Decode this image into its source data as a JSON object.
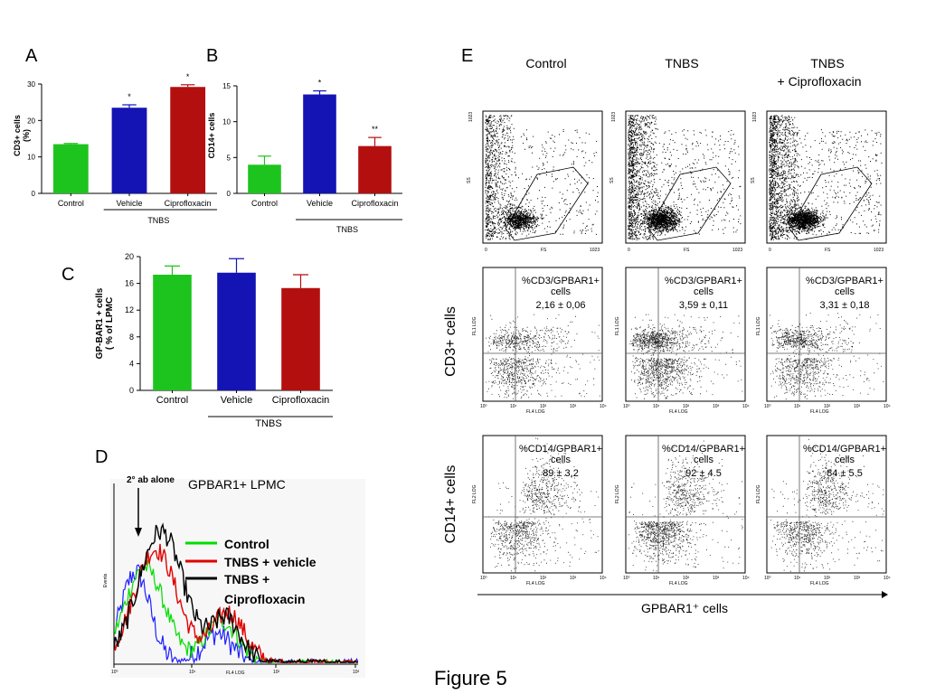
{
  "figure_title": "Figure 5",
  "panels": {
    "A": {
      "letter": "A",
      "group_label": "TNBS"
    },
    "B": {
      "letter": "B",
      "group_label": "TNBS"
    },
    "C": {
      "letter": "C",
      "group_label": "TNBS"
    },
    "D": {
      "letter": "D",
      "subtitle": "GPBAR1+ LPMC",
      "marker_label": "2° ab alone",
      "ylabel": "Events",
      "xlabel": "FL4 LOG",
      "legend": [
        "Control",
        "TNBS + vehicle",
        "TNBS +",
        "Ciprofloxacin"
      ]
    },
    "E": {
      "letter": "E",
      "col_headers": [
        "Control",
        "TNBS",
        "TNBS",
        "+ Ciprofloxacin"
      ],
      "row_labels": [
        "CD3+ cells",
        "CD14+ cells"
      ],
      "xaxis_label": "GPBAR1⁺ cells",
      "scatter_axes": {
        "ss": "SS",
        "fs": "FS",
        "top": "1023",
        "right": "1023",
        "zero": "0"
      },
      "cd3_ylabel": "FL1 LOG",
      "cd14_ylabel": "FL2 LOG",
      "fl4": "FL4 LOG",
      "cd3_quadrants": [
        {
          "line1": "%CD3/GPBAR1+",
          "line2": "cells",
          "line3": "2,16 ± 0,06"
        },
        {
          "line1": "%CD3/GPBAR1+",
          "line2": "cells",
          "line3": "3,59 ±  0,11"
        },
        {
          "line1": "%CD3/GPBAR1+",
          "line2": "cells",
          "line3": "3,31 ± 0,18"
        }
      ],
      "cd14_quadrants": [
        {
          "line1": "%CD14/GPBAR1+",
          "line2": "cells",
          "line3": "89 ± 3,2"
        },
        {
          "line1": "%CD14/GPBAR1+",
          "line2": "cells",
          "line3": "92 ± 4.5"
        },
        {
          "line1": "%CD14/GPBAR1+",
          "line2": "cells",
          "line3": "84 ± 5.5"
        }
      ],
      "log_ticks": [
        "10⁰",
        "10¹",
        "10²",
        "10³",
        "10⁴"
      ]
    }
  },
  "colors": {
    "control": "#1ec41e",
    "vehicle": "#1414b4",
    "cipro": "#b40f0f",
    "hist_control": "#00dd00",
    "hist_vehicle": "#e00000",
    "hist_cipro": "#000000",
    "hist_ab": "#2020ff"
  },
  "chart_data": [
    {
      "type": "bar",
      "panel": "A",
      "categories": [
        "Control",
        "Vehicle",
        "Ciprofloxacin"
      ],
      "values": [
        13.5,
        23.5,
        29.2
      ],
      "errors": [
        0.2,
        0.8,
        0.6
      ],
      "significance": [
        "",
        "*",
        "*"
      ],
      "ylabel": "CD3+ cells (%)",
      "ylim": [
        0,
        30
      ],
      "yticks": [
        0,
        10,
        20,
        30
      ]
    },
    {
      "type": "bar",
      "panel": "B",
      "categories": [
        "Control",
        "Vehicle",
        "Ciprofloxacin"
      ],
      "values": [
        4.0,
        13.8,
        6.6
      ],
      "errors": [
        1.2,
        0.5,
        1.2
      ],
      "significance": [
        "",
        "*",
        "**"
      ],
      "ylabel": "CD14+ cells",
      "ylim": [
        0,
        15
      ],
      "yticks": [
        0,
        5,
        10,
        15
      ]
    },
    {
      "type": "bar",
      "panel": "C",
      "categories": [
        "Control",
        "Vehicle",
        "Ciprofloxacin"
      ],
      "values": [
        17.3,
        17.6,
        15.3
      ],
      "errors": [
        1.3,
        2.1,
        2.0
      ],
      "significance": [
        "",
        "",
        ""
      ],
      "ylabel": "GP-BAR1 + cells ( % of LPMC",
      "ylim": [
        0,
        20
      ],
      "yticks": [
        0,
        4,
        8,
        12,
        16,
        20
      ]
    }
  ]
}
